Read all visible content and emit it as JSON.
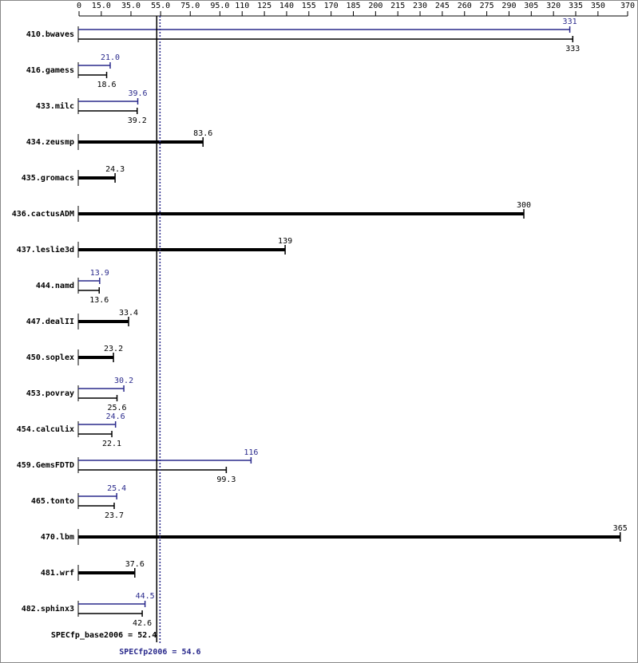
{
  "chart_data": {
    "type": "spec-bar",
    "categories": [
      "410.bwaves",
      "416.gamess",
      "433.milc",
      "434.zeusmp",
      "435.gromacs",
      "436.cactusADM",
      "437.leslie3d",
      "444.namd",
      "447.dealII",
      "450.soplex",
      "453.povray",
      "454.calculix",
      "459.GemsFDTD",
      "465.tonto",
      "470.lbm",
      "481.wrf",
      "482.sphinx3"
    ],
    "peak": {
      "color": "#2a2a8c",
      "values": [
        331,
        21.0,
        39.6,
        null,
        null,
        null,
        null,
        13.9,
        null,
        null,
        30.2,
        24.6,
        116,
        25.4,
        null,
        null,
        44.5
      ],
      "value_labels": [
        "331",
        "21.0",
        "39.6",
        null,
        null,
        null,
        null,
        "13.9",
        null,
        null,
        "30.2",
        "24.6",
        "116",
        "25.4",
        null,
        null,
        "44.5"
      ]
    },
    "base": {
      "color": "#000000",
      "values": [
        333,
        18.6,
        39.2,
        83.6,
        24.3,
        300,
        139,
        13.6,
        33.4,
        23.2,
        25.6,
        22.1,
        99.3,
        23.7,
        365,
        37.6,
        42.6
      ],
      "value_labels": [
        "333",
        "18.6",
        "39.2",
        "83.6",
        "24.3",
        "300",
        "139",
        "13.6",
        "33.4",
        "23.2",
        "25.6",
        "22.1",
        "99.3",
        "23.7",
        "365",
        "37.6",
        "42.6"
      ]
    },
    "base_mean": {
      "label": "SPECfp_base2006 = 52.4",
      "value": 52.4
    },
    "peak_mean": {
      "label": "SPECfp2006 = 54.6",
      "value": 54.6
    },
    "xlim": [
      0,
      370
    ],
    "xticks": [
      0,
      {
        "value": 15,
        "label": "15.0"
      },
      {
        "value": 35,
        "label": "35.0"
      },
      {
        "value": 55,
        "label": "55.0"
      },
      {
        "value": 75,
        "label": "75.0"
      },
      {
        "value": 95,
        "label": "95.0"
      },
      110,
      125,
      140,
      155,
      170,
      185,
      200,
      215,
      230,
      245,
      260,
      275,
      290,
      305,
      320,
      335,
      350,
      370
    ]
  }
}
